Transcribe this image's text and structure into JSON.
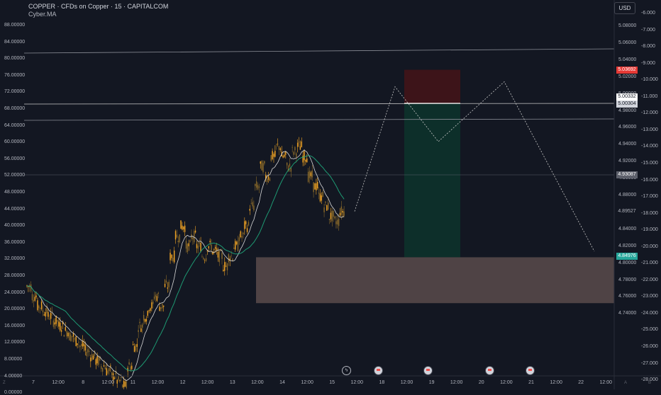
{
  "legend": {
    "title": "COPPER · CFDs on Copper · 15 · CAPITALCOM",
    "indicator": "Cyber.MA"
  },
  "currency_button": "USD",
  "colors": {
    "background": "#131722",
    "up": "#f5a623",
    "down": "#8a6a2a",
    "ma_white": "#d8d8d8",
    "ma_green": "#1e9a73",
    "stop_zone": "#3d1419",
    "target_zone": "#0d2f2a",
    "demand_zone": "#5a4b4b",
    "red_tag": "#e53935",
    "green_tag": "#26a69a",
    "grey_tag": "#5d606b"
  },
  "left_axis": [
    "88.00000",
    "84.00000",
    "80.00000",
    "76.00000",
    "72.00000",
    "68.00000",
    "64.00000",
    "60.00000",
    "56.00000",
    "52.00000",
    "48.00000",
    "44.00000",
    "40.00000",
    "36.00000",
    "32.00000",
    "28.00000",
    "24.00000",
    "20.00000",
    "16.00000",
    "12.00000",
    "8.00000",
    "4.00000",
    "0.00000"
  ],
  "right_axis": [
    "5.08000",
    "5.06000",
    "5.04000",
    "5.02000",
    "5.00000",
    "4.98000",
    "4.96000",
    "4.94000",
    "4.92000",
    "4.90000",
    "4.88000",
    "4.86000",
    "4.84000",
    "4.82000",
    "4.80000",
    "4.78000",
    "4.76000",
    "4.74000"
  ],
  "right2_axis": [
    "-6.000",
    "-7.000",
    "-8.000",
    "-9.000",
    "-10.000",
    "-11.000",
    "-12.000",
    "-13.000",
    "-14.000",
    "-15.000",
    "-16.000",
    "-17.000",
    "-18.000",
    "-19.000",
    "-20.000",
    "-21.000",
    "-22.000",
    "-23.000",
    "-24.000",
    "-25.000",
    "-26.000",
    "-27.000",
    "-28.000"
  ],
  "x_axis": [
    "7",
    "12:00",
    "8",
    "12:00",
    "11",
    "12:00",
    "12",
    "12:00",
    "13",
    "12:00",
    "14",
    "12:00",
    "15",
    "12:00",
    "18",
    "12:00",
    "19",
    "12:00",
    "20",
    "12:00",
    "21",
    "12:00",
    "22",
    "12:00"
  ],
  "price_tags": {
    "stop": "5.03692",
    "entry1": "5.00332",
    "entry2": "5.00304",
    "level": "4.93087",
    "last": "4.89527",
    "target": "4.84976"
  },
  "corner_left": "Z",
  "corner_right1": "A",
  "corner_right2": "B",
  "chart_data": {
    "type": "candlestick",
    "symbol": "COPPER",
    "timeframe": "15",
    "close_path": [
      4.82,
      4.81,
      4.8,
      4.795,
      4.79,
      4.785,
      4.78,
      4.775,
      4.77,
      4.765,
      4.76,
      4.755,
      4.75,
      4.745,
      4.74,
      4.735,
      4.73,
      4.725,
      4.72,
      4.74,
      4.76,
      4.78,
      4.79,
      4.8,
      4.81,
      4.8,
      4.82,
      4.85,
      4.87,
      4.88,
      4.86,
      4.87,
      4.86,
      4.85,
      4.86,
      4.855,
      4.85,
      4.84,
      4.85,
      4.86,
      4.87,
      4.88,
      4.9,
      4.92,
      4.94,
      4.93,
      4.95,
      4.96,
      4.95,
      4.94,
      4.955,
      4.96,
      4.95,
      4.93,
      4.92,
      4.91,
      4.9,
      4.89,
      4.885,
      4.895
    ],
    "projection_path": [
      [
        4.895,
        4.9
      ],
      [
        5.02,
        5.6
      ],
      [
        4.965,
        6.4
      ],
      [
        5.025,
        7.6
      ],
      [
        4.855,
        9.5
      ]
    ],
    "stop_zone": [
      5.003,
      5.037
    ],
    "target_zone": [
      4.849,
      5.003
    ],
    "demand_zone": [
      4.803,
      4.849
    ],
    "horizontal_levels": [
      5.003,
      4.931
    ],
    "ylim": [
      4.735,
      5.09
    ]
  }
}
